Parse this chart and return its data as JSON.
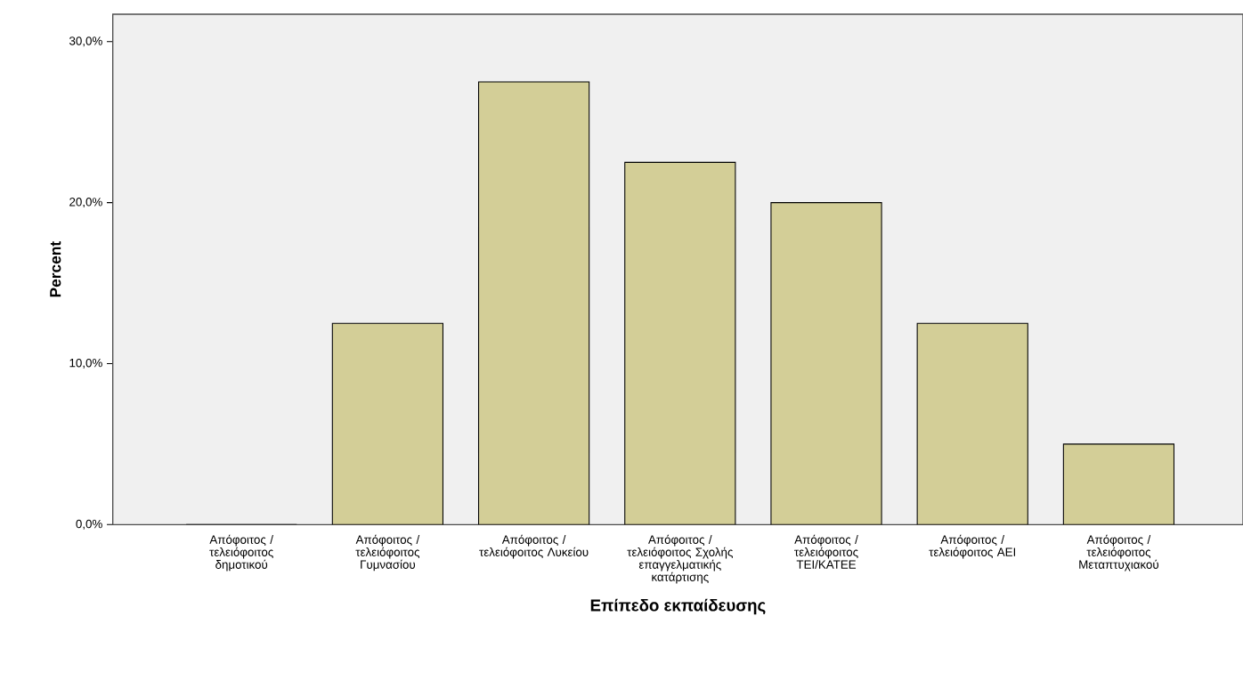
{
  "chart_data": {
    "type": "bar",
    "xlabel": "Επίπεδο εκπαίδευσης",
    "ylabel": "Percent",
    "categories": [
      "Απόφοιτος / τελειόφοιτος δημοτικού",
      "Απόφοιτος / τελειόφοιτος Γυμνασίου",
      "Απόφοιτος / τελειόφοιτος Λυκείου",
      "Απόφοιτος / τελειόφοιτος Σχολής επαγγελματικής κατάρτισης",
      "Απόφοιτος / τελειόφοιτος ΤΕΙ/ΚΑΤΕΕ",
      "Απόφοιτος / τελειόφοιτος ΑΕΙ",
      "Απόφοιτος / τελειόφοιτος Μεταπτυχιακού"
    ],
    "values": [
      0,
      12.5,
      27.5,
      22.5,
      20,
      12.5,
      5
    ],
    "color": "#d3ce97",
    "ylim": [
      0,
      31.7
    ],
    "yticks": [
      {
        "value": 0,
        "label": "0,0%"
      },
      {
        "value": 10,
        "label": "10,0%"
      },
      {
        "value": 20,
        "label": "20,0%"
      },
      {
        "value": 30,
        "label": "30,0%"
      }
    ],
    "grid": false
  }
}
